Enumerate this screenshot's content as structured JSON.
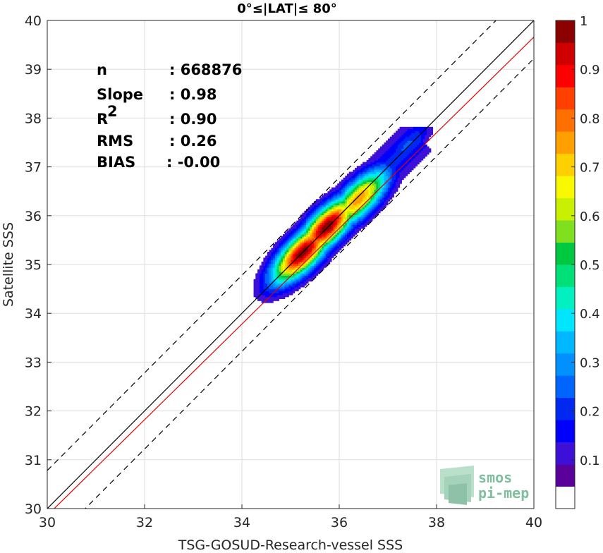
{
  "chart_data": {
    "type": "heatmap",
    "title": "0°≤|LAT|≤ 80°",
    "xlabel": "TSG-GOSUD-Research-vessel SSS",
    "ylabel": "Satellite SSS",
    "xlim": [
      30,
      40
    ],
    "ylim": [
      30,
      40
    ],
    "x_ticks": [
      "30",
      "32",
      "34",
      "36",
      "38",
      "40"
    ],
    "y_ticks": [
      "30",
      "31",
      "32",
      "33",
      "34",
      "35",
      "36",
      "37",
      "38",
      "39",
      "40"
    ],
    "grid": true,
    "stats": [
      {
        "label": "n",
        "value": ": 668876"
      },
      {
        "label": "Slope",
        "value": ": 0.98"
      },
      {
        "label": "R",
        "superscript": "2",
        "value": ": 0.90"
      },
      {
        "label": "RMS",
        "value": ": 0.26"
      },
      {
        "label": "BIAS",
        "value": ": -0.00"
      }
    ],
    "lines": [
      {
        "kind": "one-to-one",
        "color": "#000000",
        "style": "solid",
        "x": [
          30,
          40
        ],
        "y": [
          30,
          40
        ]
      },
      {
        "kind": "regression",
        "color": "#e00000",
        "style": "solid",
        "x": [
          30,
          40
        ],
        "y": [
          29.86,
          39.66
        ]
      },
      {
        "kind": "plus-offset",
        "color": "#000000",
        "style": "dashed",
        "x": [
          30,
          40
        ],
        "y": [
          30.78,
          40.78
        ]
      },
      {
        "kind": "minus-offset",
        "color": "#000000",
        "style": "dashed",
        "x": [
          30,
          40
        ],
        "y": [
          29.22,
          39.22
        ]
      }
    ],
    "density_peaks": [
      {
        "x": 35.25,
        "y": 35.25,
        "density": 1.0
      },
      {
        "x": 35.75,
        "y": 35.78,
        "density": 1.0
      },
      {
        "x": 36.4,
        "y": 36.35,
        "density": 0.75
      },
      {
        "x": 37.4,
        "y": 37.45,
        "density": 0.2
      }
    ],
    "colorbar": {
      "ticks": [
        "0.1",
        "0.2",
        "0.3",
        "0.4",
        "0.5",
        "0.6",
        "0.7",
        "0.8",
        "0.9",
        "1"
      ],
      "range": [
        0,
        1.0
      ],
      "colors": [
        "#ffffff",
        "#5a009b",
        "#3d10d8",
        "#0000ff",
        "#0028f0",
        "#0064ff",
        "#0090ff",
        "#00b8ff",
        "#00e6ff",
        "#00f0c0",
        "#00e078",
        "#00c840",
        "#80e020",
        "#c8f000",
        "#f8f800",
        "#ffd000",
        "#ffa000",
        "#ff7000",
        "#ff4000",
        "#ff0000",
        "#d00000",
        "#8b0000"
      ]
    },
    "logo": {
      "line1": "smos",
      "line2": "pi-mep"
    }
  }
}
